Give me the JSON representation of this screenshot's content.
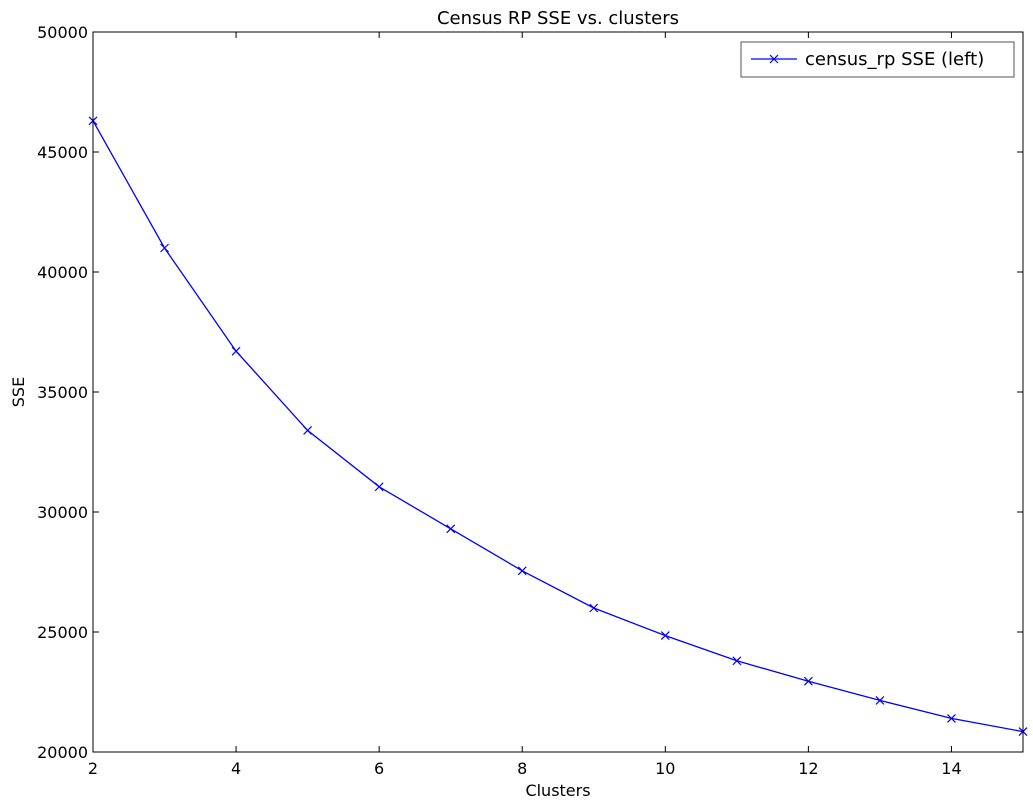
{
  "chart_data": {
    "type": "line",
    "title": "Census RP SSE vs. clusters",
    "xlabel": "Clusters",
    "ylabel": "SSE",
    "xlim": [
      2,
      15
    ],
    "ylim": [
      20000,
      50000
    ],
    "xticks": [
      2,
      4,
      6,
      8,
      10,
      12,
      14
    ],
    "yticks": [
      20000,
      25000,
      30000,
      35000,
      40000,
      45000,
      50000
    ],
    "grid": false,
    "legend_position": "top-right",
    "series": [
      {
        "name": "census_rp SSE (left)",
        "color": "#0000ff",
        "marker": "x",
        "x": [
          2,
          3,
          4,
          5,
          6,
          7,
          8,
          9,
          10,
          11,
          12,
          13,
          14,
          15
        ],
        "y": [
          46300,
          41000,
          36700,
          33400,
          31050,
          29300,
          27550,
          26000,
          24850,
          23800,
          22950,
          22150,
          21400,
          20850
        ]
      }
    ]
  }
}
